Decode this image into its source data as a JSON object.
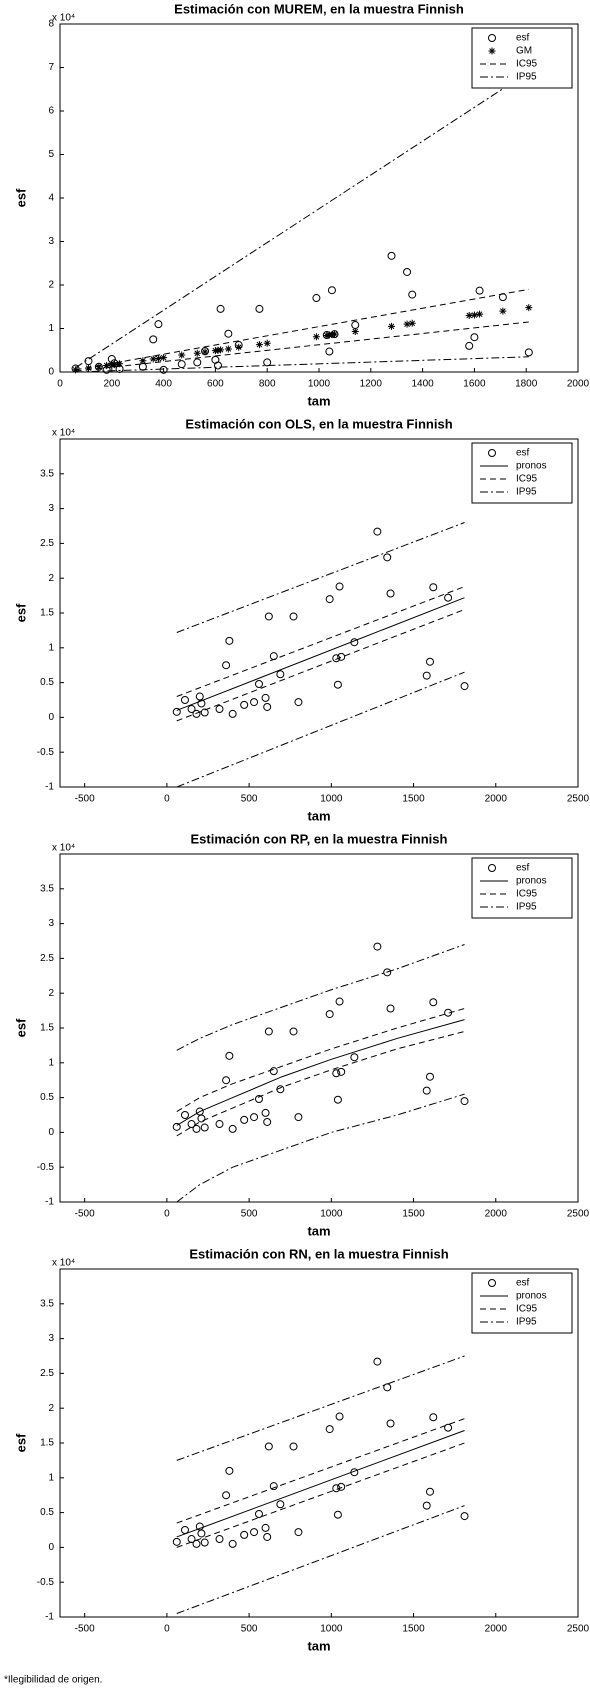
{
  "chart_data": [
    {
      "type": "scatter",
      "title": "Estimación con MUREM, en la muestra Finnish",
      "x_label": "tam",
      "y_label": "esf",
      "y_multiplier": "x 10⁴",
      "xlim": [
        0,
        2000
      ],
      "xticks": [
        0,
        200,
        400,
        600,
        800,
        1000,
        1200,
        1400,
        1600,
        1800,
        2000
      ],
      "ylim": [
        0,
        8
      ],
      "yticks": [
        0,
        1,
        2,
        3,
        4,
        5,
        6,
        7,
        8
      ],
      "legend": "upper right",
      "series": [
        {
          "name": "esf",
          "marker": "circle",
          "color": "#000000",
          "x": [
            60,
            110,
            150,
            180,
            200,
            210,
            230,
            320,
            360,
            380,
            400,
            470,
            530,
            560,
            600,
            610,
            620,
            650,
            690,
            770,
            800,
            990,
            1030,
            1040,
            1050,
            1060,
            1140,
            1280,
            1340,
            1360,
            1580,
            1600,
            1620,
            1710,
            1810
          ],
          "values": [
            0.08,
            0.25,
            0.12,
            0.05,
            0.3,
            0.2,
            0.07,
            0.12,
            0.75,
            1.1,
            0.05,
            0.18,
            0.22,
            0.48,
            0.28,
            0.15,
            1.45,
            0.88,
            0.62,
            1.45,
            0.22,
            1.7,
            0.85,
            0.47,
            1.88,
            0.87,
            1.08,
            2.67,
            2.3,
            1.78,
            0.6,
            0.8,
            1.87,
            1.72,
            0.45
          ]
        },
        {
          "name": "GM",
          "marker": "asterisk",
          "color": "#000000",
          "x": [
            60,
            110,
            150,
            180,
            200,
            210,
            230,
            320,
            360,
            380,
            400,
            470,
            530,
            560,
            600,
            610,
            620,
            650,
            690,
            770,
            800,
            990,
            1030,
            1040,
            1050,
            1060,
            1140,
            1280,
            1340,
            1360,
            1580,
            1600,
            1620,
            1710,
            1810
          ],
          "values": [
            0.05,
            0.09,
            0.12,
            0.15,
            0.16,
            0.17,
            0.19,
            0.26,
            0.3,
            0.31,
            0.33,
            0.39,
            0.43,
            0.46,
            0.49,
            0.5,
            0.51,
            0.53,
            0.57,
            0.63,
            0.66,
            0.81,
            0.84,
            0.85,
            0.86,
            0.87,
            0.93,
            1.05,
            1.1,
            1.12,
            1.3,
            1.31,
            1.33,
            1.4,
            1.48
          ]
        },
        {
          "name": "IC95",
          "style": "dashed",
          "color": "#000000",
          "x": [
            60,
            1810
          ],
          "values": [
            0.05,
            1.9
          ],
          "lower": [
            0.02,
            1.15
          ]
        },
        {
          "name": "IP95",
          "style": "dashdot",
          "color": "#000000",
          "x": [
            60,
            1810
          ],
          "values": [
            0.1,
            6.9
          ],
          "lower": [
            0,
            0.35
          ]
        }
      ]
    },
    {
      "type": "scatter",
      "title": "Estimación con OLS, en la muestra Finnish",
      "x_label": "tam",
      "y_label": "esf",
      "y_multiplier": "x 10⁴",
      "xlim": [
        -650,
        2500
      ],
      "xticks": [
        -500,
        0,
        500,
        1000,
        1500,
        2000,
        2500
      ],
      "ylim": [
        -1,
        4
      ],
      "yticks": [
        -1,
        -0.5,
        0,
        0.5,
        1,
        1.5,
        2,
        2.5,
        3,
        3.5
      ],
      "legend": "upper right",
      "series": [
        {
          "name": "esf",
          "marker": "circle",
          "color": "#000000",
          "x": [
            60,
            110,
            150,
            180,
            200,
            210,
            230,
            320,
            360,
            380,
            400,
            470,
            530,
            560,
            600,
            610,
            620,
            650,
            690,
            770,
            800,
            990,
            1030,
            1040,
            1050,
            1060,
            1140,
            1280,
            1340,
            1360,
            1580,
            1600,
            1620,
            1710,
            1810
          ],
          "values": [
            0.08,
            0.25,
            0.12,
            0.05,
            0.3,
            0.2,
            0.07,
            0.12,
            0.75,
            1.1,
            0.05,
            0.18,
            0.22,
            0.48,
            0.28,
            0.15,
            1.45,
            0.88,
            0.62,
            1.45,
            0.22,
            1.7,
            0.85,
            0.47,
            1.88,
            0.87,
            1.08,
            2.67,
            2.3,
            1.78,
            0.6,
            0.8,
            1.87,
            1.72,
            0.45
          ]
        },
        {
          "name": "pronos",
          "style": "solid",
          "color": "#000000",
          "x": [
            60,
            1810
          ],
          "values": [
            0.1,
            1.72
          ]
        },
        {
          "name": "IC95",
          "style": "dashed",
          "color": "#000000",
          "x": [
            60,
            1810
          ],
          "values": [
            0.3,
            1.88
          ],
          "lower": [
            -0.05,
            1.55
          ]
        },
        {
          "name": "IP95",
          "style": "dashdot",
          "color": "#000000",
          "x": [
            60,
            1810
          ],
          "values": [
            1.22,
            2.8
          ],
          "lower": [
            -1,
            0.65
          ]
        }
      ]
    },
    {
      "type": "scatter",
      "title": "Estimación con RP, en la muestra Finnish",
      "x_label": "tam",
      "y_label": "esf",
      "y_multiplier": "x 10⁴",
      "xlim": [
        -650,
        2500
      ],
      "xticks": [
        -500,
        0,
        500,
        1000,
        1500,
        2000,
        2500
      ],
      "ylim": [
        -1,
        4
      ],
      "yticks": [
        -1,
        -0.5,
        0,
        0.5,
        1,
        1.5,
        2,
        2.5,
        3,
        3.5
      ],
      "legend": "upper right",
      "series": [
        {
          "name": "esf",
          "marker": "circle",
          "color": "#000000",
          "x": [
            60,
            110,
            150,
            180,
            200,
            210,
            230,
            320,
            360,
            380,
            400,
            470,
            530,
            560,
            600,
            610,
            620,
            650,
            690,
            770,
            800,
            990,
            1030,
            1040,
            1050,
            1060,
            1140,
            1280,
            1340,
            1360,
            1580,
            1600,
            1620,
            1710,
            1810
          ],
          "values": [
            0.08,
            0.25,
            0.12,
            0.05,
            0.3,
            0.2,
            0.07,
            0.12,
            0.75,
            1.1,
            0.05,
            0.18,
            0.22,
            0.48,
            0.28,
            0.15,
            1.45,
            0.88,
            0.62,
            1.45,
            0.22,
            1.7,
            0.85,
            0.47,
            1.88,
            0.87,
            1.08,
            2.67,
            2.3,
            1.78,
            0.6,
            0.8,
            1.87,
            1.72,
            0.45
          ]
        },
        {
          "name": "pronos",
          "style": "solid",
          "color": "#000000",
          "x": [
            60,
            200,
            400,
            700,
            1000,
            1400,
            1810
          ],
          "values": [
            0.1,
            0.3,
            0.5,
            0.8,
            1.05,
            1.35,
            1.62
          ]
        },
        {
          "name": "IC95",
          "style": "dashed",
          "color": "#000000",
          "x": [
            60,
            200,
            400,
            700,
            1000,
            1400,
            1810
          ],
          "values": [
            0.3,
            0.5,
            0.7,
            0.95,
            1.2,
            1.5,
            1.78
          ],
          "lower": [
            -0.05,
            0.15,
            0.35,
            0.65,
            0.9,
            1.2,
            1.45
          ]
        },
        {
          "name": "IP95",
          "style": "dashdot",
          "color": "#000000",
          "x": [
            60,
            200,
            400,
            700,
            1000,
            1400,
            1810
          ],
          "values": [
            1.18,
            1.35,
            1.55,
            1.8,
            2.05,
            2.35,
            2.7
          ],
          "lower": [
            -1,
            -0.75,
            -0.5,
            -0.25,
            0,
            0.25,
            0.55
          ]
        }
      ]
    },
    {
      "type": "scatter",
      "title": "Estimación con RN, en la muestra Finnish",
      "x_label": "tam",
      "y_label": "esf",
      "y_multiplier": "x 10⁴",
      "xlim": [
        -650,
        2500
      ],
      "xticks": [
        -500,
        0,
        500,
        1000,
        1500,
        2000,
        2500
      ],
      "ylim": [
        -1,
        4
      ],
      "yticks": [
        -1,
        -0.5,
        0,
        0.5,
        1,
        1.5,
        2,
        2.5,
        3,
        3.5
      ],
      "legend": "upper right",
      "series": [
        {
          "name": "esf",
          "marker": "circle",
          "color": "#000000",
          "x": [
            60,
            110,
            150,
            180,
            200,
            210,
            230,
            320,
            360,
            380,
            400,
            470,
            530,
            560,
            600,
            610,
            620,
            650,
            690,
            770,
            800,
            990,
            1030,
            1040,
            1050,
            1060,
            1140,
            1280,
            1340,
            1360,
            1580,
            1600,
            1620,
            1710,
            1810
          ],
          "values": [
            0.08,
            0.25,
            0.12,
            0.05,
            0.3,
            0.2,
            0.07,
            0.12,
            0.75,
            1.1,
            0.05,
            0.18,
            0.22,
            0.48,
            0.28,
            0.15,
            1.45,
            0.88,
            0.62,
            1.45,
            0.22,
            1.7,
            0.85,
            0.47,
            1.88,
            0.87,
            1.08,
            2.67,
            2.3,
            1.78,
            0.6,
            0.8,
            1.87,
            1.72,
            0.45
          ]
        },
        {
          "name": "pronos",
          "style": "solid",
          "color": "#000000",
          "x": [
            60,
            1810
          ],
          "values": [
            0.15,
            1.68
          ]
        },
        {
          "name": "IC95",
          "style": "dashed",
          "color": "#000000",
          "x": [
            60,
            1810
          ],
          "values": [
            0.35,
            1.85
          ],
          "lower": [
            0,
            1.5
          ]
        },
        {
          "name": "IP95",
          "style": "dashdot",
          "color": "#000000",
          "x": [
            60,
            1810
          ],
          "values": [
            1.25,
            2.75
          ],
          "lower": [
            -0.95,
            0.6
          ]
        }
      ]
    }
  ],
  "footnote": "*Ilegibilidad de origen."
}
